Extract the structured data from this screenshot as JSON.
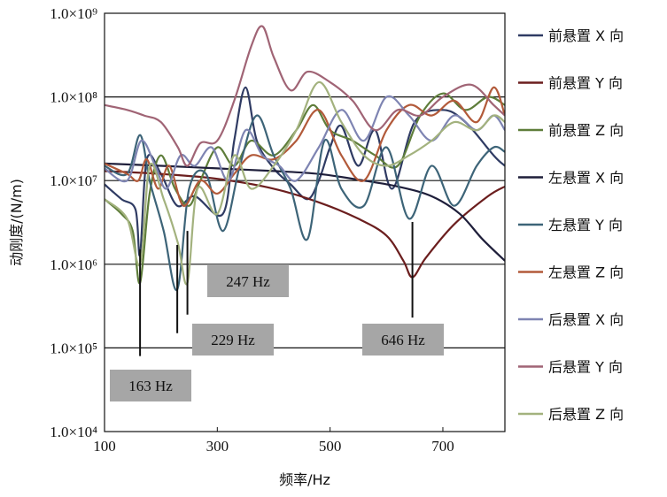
{
  "chart_data": {
    "type": "line",
    "title": "",
    "xlabel": "频率/Hz",
    "ylabel": "动刚度/(N/m)",
    "xlim": [
      100,
      810
    ],
    "ylim": [
      10000,
      1000000000
    ],
    "y_scale": "log",
    "grid": "horizontal",
    "legend_position": "right",
    "x_ticks": [
      "100",
      "300",
      "500",
      "700"
    ],
    "x_tick_values": [
      100,
      300,
      500,
      700
    ],
    "y_ticks": [
      "1.0×10⁴",
      "1.0×10⁵",
      "1.0×10⁶",
      "1.0×10⁷",
      "1.0×10⁸",
      "1.0×10⁹"
    ],
    "y_tick_values": [
      10000,
      100000,
      1000000,
      10000000,
      100000000,
      1000000000
    ],
    "series": [
      {
        "name": "前悬置 X 向",
        "color": "#2f3b63",
        "x": [
          100,
          130,
          155,
          163,
          175,
          200,
          229,
          260,
          310,
          330,
          350,
          370,
          400,
          430,
          460,
          480,
          500,
          520,
          550,
          580,
          610,
          650,
          700,
          740,
          790,
          810
        ],
        "y": [
          9000000,
          6000000,
          4500000,
          1300000,
          18000000,
          12000000,
          5000000,
          6500000,
          4000000,
          30000000,
          130000000,
          30000000,
          14000000,
          9000000,
          6000000,
          10000000,
          25000000,
          45000000,
          15000000,
          40000000,
          8000000,
          50000000,
          70000000,
          50000000,
          20000000,
          15000000
        ]
      },
      {
        "name": "前悬置 Y 向",
        "color": "#6b1e1e",
        "x": [
          100,
          200,
          300,
          400,
          480,
          550,
          600,
          630,
          646,
          670,
          720,
          780,
          810
        ],
        "y": [
          13000000,
          12000000,
          10500000,
          8000000,
          5500000,
          3500000,
          2200000,
          1100000,
          700000,
          1200000,
          3000000,
          6500000,
          8500000
        ]
      },
      {
        "name": "前悬置 Z 向",
        "color": "#5e7d3a",
        "x": [
          100,
          130,
          150,
          163,
          180,
          200,
          225,
          250,
          270,
          300,
          330,
          360,
          400,
          440,
          470,
          500,
          540,
          580,
          620,
          660,
          700,
          740,
          780,
          810
        ],
        "y": [
          6000000,
          4000000,
          2500000,
          600000,
          7000000,
          20000000,
          8000000,
          5000000,
          10000000,
          25000000,
          15000000,
          30000000,
          20000000,
          40000000,
          80000000,
          40000000,
          30000000,
          20000000,
          15000000,
          60000000,
          110000000,
          70000000,
          100000000,
          80000000
        ]
      },
      {
        "name": "左悬置 X 向",
        "color": "#1e1e3a",
        "x": [
          100,
          200,
          300,
          400,
          480,
          560,
          620,
          680,
          730,
          770,
          810
        ],
        "y": [
          16000000,
          15000000,
          14000000,
          13000000,
          12000000,
          10000000,
          8500000,
          6500000,
          4000000,
          2000000,
          1100000
        ]
      },
      {
        "name": "左悬置 Y 向",
        "color": "#3d6478",
        "x": [
          100,
          140,
          163,
          180,
          205,
          229,
          250,
          280,
          310,
          340,
          370,
          400,
          430,
          460,
          490,
          520,
          560,
          600,
          640,
          680,
          720,
          760,
          790,
          810
        ],
        "y": [
          15000000,
          12000000,
          35000000,
          10000000,
          2500000,
          500000,
          8000000,
          12000000,
          2500000,
          15000000,
          60000000,
          20000000,
          8000000,
          2000000,
          30000000,
          8000000,
          5000000,
          25000000,
          3500000,
          15000000,
          5000000,
          15000000,
          25000000,
          22000000
        ]
      },
      {
        "name": "左悬置 Z 向",
        "color": "#b25a3a",
        "x": [
          100,
          140,
          160,
          175,
          195,
          215,
          240,
          270,
          300,
          330,
          360,
          400,
          440,
          480,
          520,
          560,
          600,
          640,
          680,
          720,
          760,
          790,
          810
        ],
        "y": [
          16000000,
          12000000,
          10000000,
          18000000,
          8000000,
          15000000,
          5000000,
          10000000,
          7000000,
          12000000,
          20000000,
          18000000,
          30000000,
          70000000,
          20000000,
          10000000,
          40000000,
          80000000,
          60000000,
          90000000,
          50000000,
          130000000,
          60000000
        ]
      },
      {
        "name": "后悬置 X 向",
        "color": "#7e84b2",
        "x": [
          100,
          140,
          165,
          190,
          210,
          235,
          260,
          290,
          320,
          350,
          380,
          410,
          440,
          480,
          520,
          560,
          600,
          640,
          680,
          720,
          760,
          790,
          810
        ],
        "y": [
          14000000,
          10000000,
          30000000,
          15000000,
          8000000,
          20000000,
          15000000,
          25000000,
          10000000,
          40000000,
          20000000,
          15000000,
          10000000,
          25000000,
          70000000,
          30000000,
          100000000,
          60000000,
          30000000,
          60000000,
          40000000,
          60000000,
          40000000
        ]
      },
      {
        "name": "后悬置 Y 向",
        "color": "#a06475",
        "x": [
          100,
          140,
          170,
          200,
          230,
          247,
          270,
          300,
          330,
          360,
          380,
          400,
          430,
          460,
          500,
          540,
          580,
          620,
          660,
          700,
          750,
          790,
          810
        ],
        "y": [
          80000000,
          70000000,
          60000000,
          50000000,
          25000000,
          15000000,
          28000000,
          30000000,
          90000000,
          400000000,
          700000000,
          300000000,
          120000000,
          200000000,
          150000000,
          90000000,
          40000000,
          70000000,
          60000000,
          100000000,
          140000000,
          80000000,
          60000000
        ]
      },
      {
        "name": "后悬置 Z 向",
        "color": "#a3b27e",
        "x": [
          100,
          140,
          163,
          180,
          205,
          230,
          247,
          265,
          300,
          330,
          360,
          400,
          440,
          480,
          520,
          560,
          600,
          640,
          680,
          720,
          760,
          790,
          810
        ],
        "y": [
          6000000,
          3500000,
          1000000,
          15000000,
          6000000,
          1800000,
          600000,
          8000000,
          4000000,
          20000000,
          8000000,
          15000000,
          40000000,
          150000000,
          50000000,
          20000000,
          15000000,
          20000000,
          30000000,
          50000000,
          40000000,
          60000000,
          50000000
        ]
      }
    ],
    "annotations": [
      {
        "text": "163 Hz",
        "x": 163,
        "y_top": 1500000,
        "y_bottom": 80000
      },
      {
        "text": "229 Hz",
        "x": 229,
        "y_top": 1700000,
        "y_bottom": 150000
      },
      {
        "text": "247 Hz",
        "x": 247,
        "y_top": 2500000,
        "y_bottom": 250000
      },
      {
        "text": "646 Hz",
        "x": 646,
        "y_top": 3200000,
        "y_bottom": 230000
      }
    ]
  }
}
